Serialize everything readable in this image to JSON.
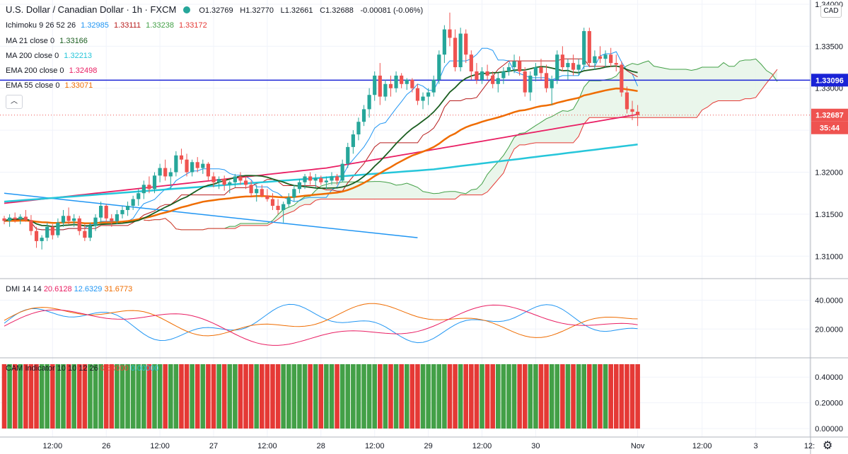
{
  "title": {
    "symbol": "U.S. Dollar / Canadian Dollar · 1h · FXCM",
    "open": "O1.32769",
    "high": "H1.32770",
    "low": "L1.32661",
    "close": "C1.32688",
    "change": "-0.00081 (-0.06%)"
  },
  "currency_badge": "CAD",
  "legend": [
    {
      "label": "Ichimoku 9 26 52 26",
      "values": [
        {
          "text": "1.32985",
          "color": "#2196f3"
        },
        {
          "text": "1.33111",
          "color": "#b71c1c"
        },
        {
          "text": "1.33238",
          "color": "#43a047"
        },
        {
          "text": "1.33172",
          "color": "#e53935"
        }
      ]
    },
    {
      "label": "MA 21 close 0",
      "values": [
        {
          "text": "1.33166",
          "color": "#1b5e20"
        }
      ]
    },
    {
      "label": "MA 200 close 0",
      "values": [
        {
          "text": "1.32213",
          "color": "#26c6da"
        }
      ]
    },
    {
      "label": "EMA 200 close 0",
      "values": [
        {
          "text": "1.32498",
          "color": "#e91e63"
        }
      ]
    },
    {
      "label": "EMA 55 close 0",
      "values": [
        {
          "text": "1.33071",
          "color": "#ef6c00"
        }
      ]
    }
  ],
  "dmi_legend": {
    "label": "DMI 14 14",
    "values": [
      {
        "text": "20.6128",
        "color": "#e91e63"
      },
      {
        "text": "12.6329",
        "color": "#2196f3"
      },
      {
        "text": "31.6773",
        "color": "#ef6c00"
      }
    ]
  },
  "cam_legend": {
    "label": "CAM Indicator 10 10 12 26",
    "values": [
      {
        "text": "0.50000",
        "color": "#f44336"
      },
      {
        "text": "0.00000",
        "color": "#26c6da"
      }
    ]
  },
  "colors": {
    "up": "#26a69a",
    "down": "#ef5350",
    "horizontal": "#1a23d6",
    "trend": "#2196f3",
    "price_label": "#ef5350",
    "level_label": "#1a23d6"
  },
  "chart_data": {
    "type": "candlestick",
    "x_tick_labels": [
      {
        "i": 9,
        "label": "12:00"
      },
      {
        "i": 19,
        "label": "26"
      },
      {
        "i": 29,
        "label": "12:00"
      },
      {
        "i": 39,
        "label": "27"
      },
      {
        "i": 49,
        "label": "12:00"
      },
      {
        "i": 59,
        "label": "28"
      },
      {
        "i": 69,
        "label": "12:00"
      },
      {
        "i": 79,
        "label": "29"
      },
      {
        "i": 89,
        "label": "12:00"
      },
      {
        "i": 99,
        "label": "30"
      },
      {
        "i": 118,
        "label": "Nov"
      },
      {
        "i": 130,
        "label": "12:00"
      },
      {
        "i": 140,
        "label": "3"
      },
      {
        "i": 150,
        "label": "12:"
      }
    ],
    "price_axis": {
      "ylim": [
        1.3075,
        1.3405
      ],
      "ticks": [
        "1.34000",
        "1.33500",
        "1.33000",
        "1.32500",
        "1.32000",
        "1.31500",
        "1.31000"
      ]
    },
    "price_labels": {
      "last": "1.32687",
      "countdown": "35:44",
      "level": "1.33096"
    },
    "horizontal_line": 1.33096,
    "trend_line": [
      {
        "i": 0,
        "v": 1.3175
      },
      {
        "i": 77,
        "v": 1.3122
      }
    ],
    "candles": [
      [
        1.3145,
        1.3148,
        1.3138,
        1.3142
      ],
      [
        1.3142,
        1.315,
        1.3135,
        1.3146
      ],
      [
        1.3146,
        1.3152,
        1.314,
        1.3144
      ],
      [
        1.3144,
        1.315,
        1.3138,
        1.3147
      ],
      [
        1.3147,
        1.3155,
        1.3141,
        1.3143
      ],
      [
        1.3143,
        1.3149,
        1.3125,
        1.313
      ],
      [
        1.313,
        1.3135,
        1.311,
        1.3118
      ],
      [
        1.3118,
        1.3125,
        1.3108,
        1.3122
      ],
      [
        1.3122,
        1.314,
        1.3118,
        1.3135
      ],
      [
        1.3135,
        1.3138,
        1.312,
        1.3125
      ],
      [
        1.3125,
        1.3145,
        1.3122,
        1.314
      ],
      [
        1.314,
        1.3155,
        1.3135,
        1.3148
      ],
      [
        1.3148,
        1.3158,
        1.3138,
        1.3142
      ],
      [
        1.3142,
        1.315,
        1.3135,
        1.3145
      ],
      [
        1.3145,
        1.3148,
        1.3125,
        1.313
      ],
      [
        1.313,
        1.3138,
        1.3118,
        1.3122
      ],
      [
        1.3122,
        1.314,
        1.3118,
        1.3136
      ],
      [
        1.3136,
        1.315,
        1.313,
        1.3146
      ],
      [
        1.3146,
        1.3165,
        1.314,
        1.316
      ],
      [
        1.316,
        1.3162,
        1.314,
        1.3145
      ],
      [
        1.3145,
        1.315,
        1.3135,
        1.3142
      ],
      [
        1.3142,
        1.3155,
        1.3138,
        1.315
      ],
      [
        1.315,
        1.316,
        1.3145,
        1.3155
      ],
      [
        1.3155,
        1.3165,
        1.3148,
        1.316
      ],
      [
        1.316,
        1.3172,
        1.3155,
        1.3168
      ],
      [
        1.3168,
        1.318,
        1.316,
        1.3175
      ],
      [
        1.3175,
        1.319,
        1.3168,
        1.3185
      ],
      [
        1.3185,
        1.3195,
        1.3175,
        1.318
      ],
      [
        1.318,
        1.32,
        1.3175,
        1.3196
      ],
      [
        1.3196,
        1.321,
        1.3188,
        1.3205
      ],
      [
        1.3205,
        1.3215,
        1.319,
        1.3195
      ],
      [
        1.3195,
        1.3205,
        1.318,
        1.32
      ],
      [
        1.32,
        1.3225,
        1.3195,
        1.322
      ],
      [
        1.322,
        1.3228,
        1.321,
        1.3215
      ],
      [
        1.3215,
        1.3222,
        1.3195,
        1.32
      ],
      [
        1.32,
        1.3215,
        1.3195,
        1.3212
      ],
      [
        1.3212,
        1.3218,
        1.32,
        1.3205
      ],
      [
        1.3205,
        1.3215,
        1.3198,
        1.321
      ],
      [
        1.321,
        1.3212,
        1.319,
        1.3195
      ],
      [
        1.3195,
        1.32,
        1.3182,
        1.3188
      ],
      [
        1.3188,
        1.3195,
        1.318,
        1.3192
      ],
      [
        1.3192,
        1.3196,
        1.3178,
        1.3185
      ],
      [
        1.3185,
        1.319,
        1.3175,
        1.3188
      ],
      [
        1.3188,
        1.3198,
        1.3182,
        1.3195
      ],
      [
        1.3195,
        1.32,
        1.3185,
        1.319
      ],
      [
        1.319,
        1.3195,
        1.318,
        1.3185
      ],
      [
        1.3185,
        1.319,
        1.317,
        1.3175
      ],
      [
        1.3175,
        1.3185,
        1.3165,
        1.318
      ],
      [
        1.318,
        1.3185,
        1.317,
        1.3172
      ],
      [
        1.3172,
        1.318,
        1.3165,
        1.3168
      ],
      [
        1.3168,
        1.3175,
        1.3155,
        1.316
      ],
      [
        1.316,
        1.3168,
        1.315,
        1.3155
      ],
      [
        1.3155,
        1.3165,
        1.314,
        1.3162
      ],
      [
        1.3162,
        1.3175,
        1.3158,
        1.317
      ],
      [
        1.317,
        1.3185,
        1.3165,
        1.318
      ],
      [
        1.318,
        1.3192,
        1.3175,
        1.3188
      ],
      [
        1.3188,
        1.3198,
        1.318,
        1.3195
      ],
      [
        1.3195,
        1.32,
        1.3185,
        1.319
      ],
      [
        1.319,
        1.3198,
        1.3182,
        1.3193
      ],
      [
        1.3193,
        1.3196,
        1.3185,
        1.3188
      ],
      [
        1.3188,
        1.3195,
        1.318,
        1.319
      ],
      [
        1.319,
        1.32,
        1.3185,
        1.3195
      ],
      [
        1.3195,
        1.3198,
        1.3185,
        1.319
      ],
      [
        1.319,
        1.3215,
        1.3188,
        1.321
      ],
      [
        1.321,
        1.3235,
        1.3205,
        1.323
      ],
      [
        1.323,
        1.325,
        1.3222,
        1.3245
      ],
      [
        1.3245,
        1.3265,
        1.3238,
        1.326
      ],
      [
        1.326,
        1.328,
        1.3255,
        1.3275
      ],
      [
        1.3275,
        1.33,
        1.3265,
        1.3292
      ],
      [
        1.3292,
        1.332,
        1.3285,
        1.3315
      ],
      [
        1.3315,
        1.333,
        1.328,
        1.329
      ],
      [
        1.329,
        1.331,
        1.3285,
        1.3305
      ],
      [
        1.3305,
        1.3315,
        1.329,
        1.33
      ],
      [
        1.33,
        1.332,
        1.3295,
        1.3315
      ],
      [
        1.3315,
        1.3318,
        1.33,
        1.3305
      ],
      [
        1.3305,
        1.3312,
        1.3298,
        1.331
      ],
      [
        1.331,
        1.3312,
        1.3295,
        1.33
      ],
      [
        1.33,
        1.3305,
        1.328,
        1.3285
      ],
      [
        1.3285,
        1.3295,
        1.3275,
        1.329
      ],
      [
        1.329,
        1.33,
        1.328,
        1.3295
      ],
      [
        1.3295,
        1.3315,
        1.329,
        1.331
      ],
      [
        1.331,
        1.3345,
        1.3305,
        1.334
      ],
      [
        1.334,
        1.3375,
        1.333,
        1.337
      ],
      [
        1.337,
        1.339,
        1.335,
        1.336
      ],
      [
        1.336,
        1.337,
        1.332,
        1.3325
      ],
      [
        1.3325,
        1.3372,
        1.332,
        1.3365
      ],
      [
        1.3365,
        1.337,
        1.333,
        1.334
      ],
      [
        1.334,
        1.3345,
        1.331,
        1.332
      ],
      [
        1.332,
        1.333,
        1.3305,
        1.331
      ],
      [
        1.331,
        1.3325,
        1.3305,
        1.332
      ],
      [
        1.332,
        1.3328,
        1.331,
        1.3315
      ],
      [
        1.3315,
        1.332,
        1.33,
        1.3305
      ],
      [
        1.3305,
        1.3318,
        1.3295,
        1.3312
      ],
      [
        1.3312,
        1.3325,
        1.3305,
        1.332
      ],
      [
        1.332,
        1.333,
        1.3315,
        1.3325
      ],
      [
        1.3325,
        1.334,
        1.3318,
        1.3332
      ],
      [
        1.3332,
        1.3338,
        1.3315,
        1.332
      ],
      [
        1.332,
        1.3325,
        1.329,
        1.3295
      ],
      [
        1.3295,
        1.332,
        1.3285,
        1.3315
      ],
      [
        1.3315,
        1.333,
        1.3308,
        1.3325
      ],
      [
        1.3325,
        1.3335,
        1.331,
        1.3318
      ],
      [
        1.3318,
        1.3328,
        1.3295,
        1.33
      ],
      [
        1.33,
        1.3315,
        1.328,
        1.331
      ],
      [
        1.331,
        1.3345,
        1.3305,
        1.334
      ],
      [
        1.334,
        1.335,
        1.332,
        1.3325
      ],
      [
        1.3325,
        1.3335,
        1.331,
        1.333
      ],
      [
        1.333,
        1.334,
        1.3315,
        1.3322
      ],
      [
        1.3322,
        1.3335,
        1.3315,
        1.3328
      ],
      [
        1.3328,
        1.3372,
        1.3322,
        1.3368
      ],
      [
        1.3368,
        1.3372,
        1.3325,
        1.333
      ],
      [
        1.333,
        1.3345,
        1.3322,
        1.3338
      ],
      [
        1.3338,
        1.335,
        1.333,
        1.3335
      ],
      [
        1.3335,
        1.3345,
        1.3325,
        1.334
      ],
      [
        1.334,
        1.3348,
        1.3325,
        1.333
      ],
      [
        1.333,
        1.334,
        1.332,
        1.3328
      ],
      [
        1.3328,
        1.3332,
        1.329,
        1.3295
      ],
      [
        1.3295,
        1.3302,
        1.327,
        1.3275
      ],
      [
        1.3275,
        1.3285,
        1.3262,
        1.3272
      ],
      [
        1.3272,
        1.328,
        1.3255,
        1.3268
      ]
    ]
  },
  "dmi_axis": {
    "ticks": [
      "40.0000",
      "20.0000"
    ]
  },
  "cam_axis": {
    "ticks": [
      "0.40000",
      "0.20000",
      "0.00000"
    ]
  }
}
